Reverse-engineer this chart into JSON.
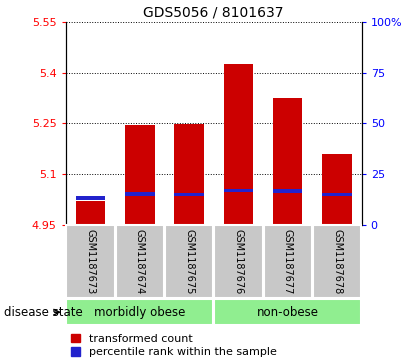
{
  "title": "GDS5056 / 8101637",
  "samples": [
    "GSM1187673",
    "GSM1187674",
    "GSM1187675",
    "GSM1187676",
    "GSM1187677",
    "GSM1187678"
  ],
  "red_values": [
    5.02,
    5.245,
    5.248,
    5.425,
    5.325,
    5.16
  ],
  "blue_values": [
    5.03,
    5.042,
    5.04,
    5.052,
    5.05,
    5.04
  ],
  "ymin": 4.95,
  "ymax": 5.55,
  "yticks_left": [
    4.95,
    5.1,
    5.25,
    5.4,
    5.55
  ],
  "yticks_right_vals": [
    0,
    25,
    50,
    75,
    100
  ],
  "yticks_right_labels": [
    "0",
    "25",
    "50",
    "75",
    "100%"
  ],
  "groups": [
    {
      "label": "morbidly obese",
      "indices": [
        0,
        1,
        2
      ],
      "color": "#90EE90"
    },
    {
      "label": "non-obese",
      "indices": [
        3,
        4,
        5
      ],
      "color": "#90EE90"
    }
  ],
  "disease_state_label": "disease state",
  "bar_width": 0.6,
  "red_color": "#CC0000",
  "blue_color": "#2222CC",
  "blue_bar_height": 0.01,
  "xticklabel_bg": "#c8c8c8",
  "group_label_fontsize": 8.5,
  "title_fontsize": 10,
  "legend_fontsize": 8,
  "tick_fontsize": 8
}
